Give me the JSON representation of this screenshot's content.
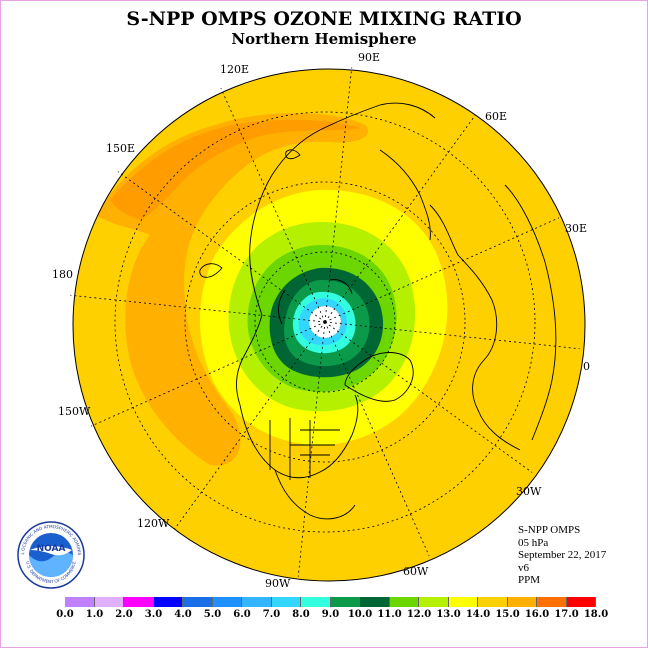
{
  "title": "S-NPP OMPS OZONE MIXING RATIO",
  "subtitle": "Northern Hemisphere",
  "longitude_labels": [
    "90E",
    "60E",
    "30E",
    "0",
    "30W",
    "60W",
    "90W",
    "120W",
    "150W",
    "180",
    "150E",
    "120E"
  ],
  "info": {
    "instrument": "S-NPP OMPS",
    "pressure": "05 hPa",
    "date": "September 22, 2017",
    "version": "v6",
    "units": "PPM"
  },
  "logo": {
    "text": "NOAA",
    "ring_text": "NATIONAL OCEANIC AND ATMOSPHERIC ADMINISTRATION",
    "ring_text_bottom": "U.S. DEPARTMENT OF COMMERCE"
  },
  "colorbar": {
    "ticks": [
      "0.0",
      "1.0",
      "2.0",
      "3.0",
      "4.0",
      "5.0",
      "6.0",
      "7.0",
      "8.0",
      "9.0",
      "10.0",
      "11.0",
      "12.0",
      "13.0",
      "14.0",
      "15.0",
      "16.0",
      "17.0",
      "18.0"
    ],
    "colors": [
      "#c080ff",
      "#e0b0ff",
      "#ff00ff",
      "#0000ff",
      "#1a6fe6",
      "#1e90ff",
      "#33b5ff",
      "#33d6ff",
      "#33ffe0",
      "#0a9a4a",
      "#006633",
      "#6bd600",
      "#b4f000",
      "#ffff00",
      "#ffd000",
      "#ffb000",
      "#ff7000",
      "#ff0000",
      "#8b5a2b"
    ]
  },
  "chart_data": {
    "type": "polar map",
    "projection": "north polar stereographic",
    "quantity": "ozone mixing ratio",
    "units": "PPM",
    "pressure_level": "05 hPa",
    "date": "September 22, 2017",
    "scale_range": [
      0.0,
      18.0
    ],
    "pattern": [
      {
        "region": "north pole center",
        "value_range": [
          6.0,
          8.0
        ]
      },
      {
        "region": "polar ring",
        "value_range": [
          9.0,
          10.0
        ]
      },
      {
        "region": "high latitudes",
        "value_range": [
          10.0,
          13.0
        ]
      },
      {
        "region": "mid/low latitudes",
        "value_range": [
          13.0,
          14.0
        ]
      },
      {
        "region": "pacific band (150E-150W)",
        "value_range": [
          14.0,
          15.0
        ]
      }
    ]
  }
}
